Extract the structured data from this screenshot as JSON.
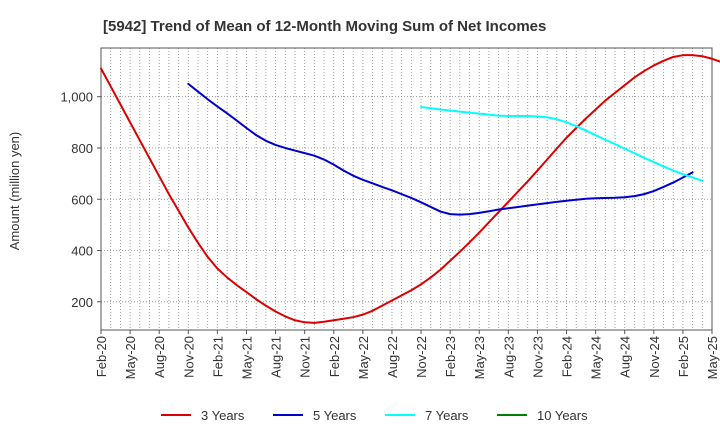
{
  "chart_data": {
    "type": "line",
    "title": "[5942]  Trend of Mean of 12-Month Moving Sum of Net Incomes",
    "ylabel": "Amount (million yen)",
    "xlabel": "",
    "ylim": [
      90,
      1190
    ],
    "y_ticks": [
      200,
      400,
      600,
      800,
      1000
    ],
    "y_tick_labels": [
      "200",
      "400",
      "600",
      "800",
      "1,000"
    ],
    "x_tick_labels": [
      "Feb-20",
      "May-20",
      "Aug-20",
      "Nov-20",
      "Feb-21",
      "May-21",
      "Aug-21",
      "Nov-21",
      "Feb-22",
      "May-22",
      "Aug-22",
      "Nov-22",
      "Feb-23",
      "May-23",
      "Aug-23",
      "Nov-23",
      "Feb-24",
      "May-24",
      "Aug-24",
      "Nov-24",
      "Feb-25",
      "May-25"
    ],
    "grid": true,
    "legend_position": "bottom",
    "series": [
      {
        "name": "3 Years",
        "color": "#dd0000",
        "start_month_index": 0,
        "values": [
          1110,
          1040,
          970,
          900,
          830,
          760,
          690,
          620,
          555,
          490,
          430,
          375,
          330,
          295,
          265,
          238,
          210,
          185,
          162,
          143,
          128,
          120,
          118,
          122,
          128,
          134,
          140,
          150,
          165,
          185,
          205,
          225,
          245,
          268,
          295,
          325,
          360,
          395,
          432,
          470,
          510,
          550,
          590,
          630,
          670,
          712,
          755,
          798,
          840,
          878,
          915,
          950,
          985,
          1015,
          1045,
          1075,
          1100,
          1122,
          1140,
          1155,
          1162,
          1162,
          1158,
          1148,
          1135,
          1120,
          1100
        ]
      },
      {
        "name": "5 Years",
        "color": "#0000cc",
        "start_month_index": 9,
        "values": [
          1050,
          1020,
          990,
          962,
          935,
          907,
          878,
          850,
          828,
          812,
          800,
          790,
          780,
          770,
          755,
          735,
          712,
          692,
          676,
          662,
          648,
          635,
          620,
          605,
          588,
          570,
          552,
          542,
          540,
          542,
          547,
          553,
          560,
          565,
          570,
          575,
          580,
          585,
          590,
          594,
          598,
          602,
          604,
          605,
          606,
          608,
          612,
          620,
          632,
          648,
          665,
          685,
          705
        ]
      },
      {
        "name": "7 Years",
        "color": "#00ffff",
        "start_month_index": 33,
        "values": [
          960,
          955,
          950,
          946,
          942,
          938,
          934,
          930,
          926,
          925,
          925,
          925,
          923,
          920,
          912,
          900,
          885,
          868,
          850,
          832,
          815,
          797,
          780,
          762,
          745,
          728,
          712,
          698,
          685,
          672
        ]
      },
      {
        "name": "10 Years",
        "color": "#008000",
        "start_month_index": 0,
        "values": []
      }
    ]
  }
}
